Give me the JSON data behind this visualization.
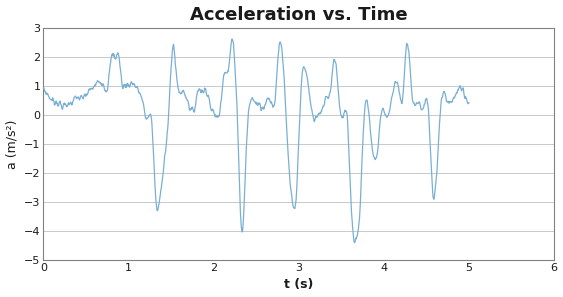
{
  "title": "Acceleration vs. Time",
  "xlabel": "t (s)",
  "ylabel": "a (m/s²)",
  "xlim": [
    0,
    6
  ],
  "ylim": [
    -5,
    3
  ],
  "yticks": [
    -5,
    -4,
    -3,
    -2,
    -1,
    0,
    1,
    2,
    3
  ],
  "xticks": [
    0,
    1,
    2,
    3,
    4,
    5,
    6
  ],
  "line_color": "#7aafd4",
  "bg_color": "#ffffff",
  "title_fontsize": 13,
  "label_fontsize": 9,
  "figsize": [
    5.63,
    2.97
  ],
  "dpi": 100,
  "keypoints_t": [
    0.0,
    0.05,
    0.1,
    0.15,
    0.2,
    0.25,
    0.3,
    0.35,
    0.4,
    0.45,
    0.5,
    0.55,
    0.6,
    0.65,
    0.7,
    0.75,
    0.8,
    0.85,
    0.88,
    0.92,
    0.95,
    1.0,
    1.05,
    1.1,
    1.15,
    1.18,
    1.22,
    1.27,
    1.32,
    1.37,
    1.42,
    1.47,
    1.52,
    1.57,
    1.62,
    1.67,
    1.72,
    1.77,
    1.82,
    1.87,
    1.92,
    1.97,
    2.02,
    2.07,
    2.12,
    2.17,
    2.22,
    2.25,
    2.28,
    2.33,
    2.38,
    2.43,
    2.48,
    2.53,
    2.57,
    2.62,
    2.67,
    2.72,
    2.77,
    2.82,
    2.87,
    2.92,
    2.97,
    3.02,
    3.07,
    3.12,
    3.17,
    3.22,
    3.27,
    3.32,
    3.37,
    3.42,
    3.47,
    3.52,
    3.57,
    3.62,
    3.67,
    3.72,
    3.77,
    3.82,
    3.87,
    3.92,
    3.97,
    4.02,
    4.07,
    4.12,
    4.17,
    4.22,
    4.27,
    4.32,
    4.37,
    4.42,
    4.47,
    4.52,
    4.57,
    4.62,
    4.67,
    4.72,
    4.77,
    4.82,
    4.87,
    4.92,
    4.97,
    5.0
  ],
  "keypoints_a": [
    0.85,
    0.7,
    0.5,
    0.45,
    0.35,
    0.3,
    0.4,
    0.5,
    0.6,
    0.55,
    0.7,
    0.85,
    1.0,
    1.15,
    1.1,
    0.95,
    2.0,
    2.0,
    2.1,
    1.1,
    1.0,
    1.05,
    1.1,
    0.9,
    0.6,
    0.2,
    -0.15,
    -0.2,
    -3.0,
    -2.8,
    -1.5,
    0.0,
    2.4,
    1.1,
    0.8,
    0.7,
    0.25,
    0.2,
    0.9,
    0.8,
    0.85,
    0.2,
    0.0,
    0.1,
    1.5,
    1.5,
    2.6,
    1.7,
    -0.3,
    -4.1,
    -1.3,
    0.5,
    0.45,
    0.4,
    0.3,
    0.45,
    0.5,
    0.55,
    2.5,
    1.5,
    -1.2,
    -3.0,
    -2.8,
    0.6,
    1.6,
    0.8,
    -0.1,
    0.0,
    0.1,
    0.65,
    0.85,
    2.0,
    0.6,
    -0.1,
    -0.2,
    -3.4,
    -4.3,
    -3.1,
    0.1,
    0.1,
    -1.3,
    -1.3,
    0.1,
    0.0,
    0.2,
    1.05,
    1.0,
    0.5,
    2.5,
    1.0,
    0.4,
    0.35,
    0.3,
    0.25,
    -2.6,
    -2.0,
    0.4,
    0.6,
    0.4,
    0.5,
    0.9,
    0.8,
    0.5,
    0.4
  ]
}
